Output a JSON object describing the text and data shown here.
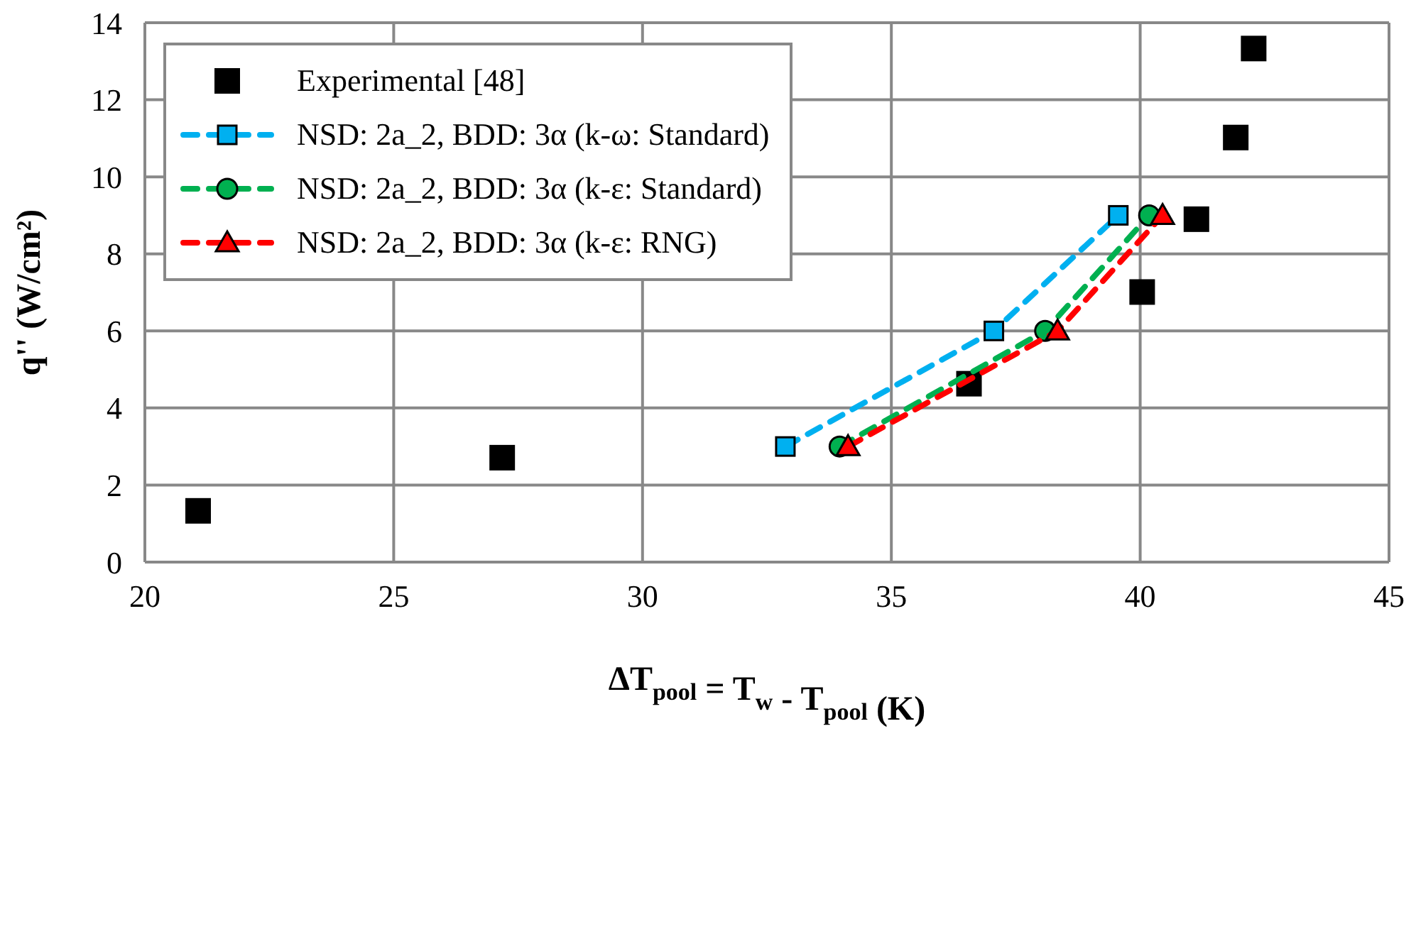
{
  "chart_data": {
    "type": "scatter",
    "xlabel": "ΔT$_{pool}$ = T$_{w}$ - T$_{pool}$ (K)",
    "ylabel": "q'' (W/cm²)",
    "xlim": [
      20,
      45
    ],
    "xticks": [
      20,
      25,
      30,
      35,
      40,
      45
    ],
    "ylim": [
      0,
      14
    ],
    "yticks": [
      0,
      2,
      4,
      6,
      8,
      10,
      12,
      14
    ],
    "grid": true,
    "legend": "top left",
    "series": [
      {
        "name": "Experimental [48]",
        "marker": "square",
        "color": "#000000",
        "x": [
          21.07,
          27.18,
          36.56,
          40.04,
          41.13,
          41.92,
          42.28
        ],
        "values": [
          1.33,
          2.71,
          4.63,
          7.01,
          8.9,
          11.02,
          13.33
        ]
      },
      {
        "name": "NSD: 2a_2, BDD: 3α (k-ω: Standard)",
        "type": "line",
        "line_style": "dashed",
        "marker": "square",
        "color": "#00b0f0",
        "x": [
          32.87,
          37.06,
          39.56
        ],
        "values": [
          3,
          6,
          9
        ]
      },
      {
        "name": "NSD: 2a_2, BDD: 3α (k-ε: Standard)",
        "type": "line",
        "line_style": "dashed",
        "marker": "circle",
        "color": "#00b050",
        "x": [
          33.96,
          38.09,
          40.18
        ],
        "values": [
          3,
          6,
          9
        ]
      },
      {
        "name": "NSD: 2a_2, BDD: 3α (k-ε: RNG)",
        "type": "line",
        "line_style": "dashed",
        "marker": "triangle",
        "color": "#ff0000",
        "x": [
          34.13,
          38.34,
          40.45
        ],
        "values": [
          3,
          6,
          9
        ]
      }
    ]
  }
}
